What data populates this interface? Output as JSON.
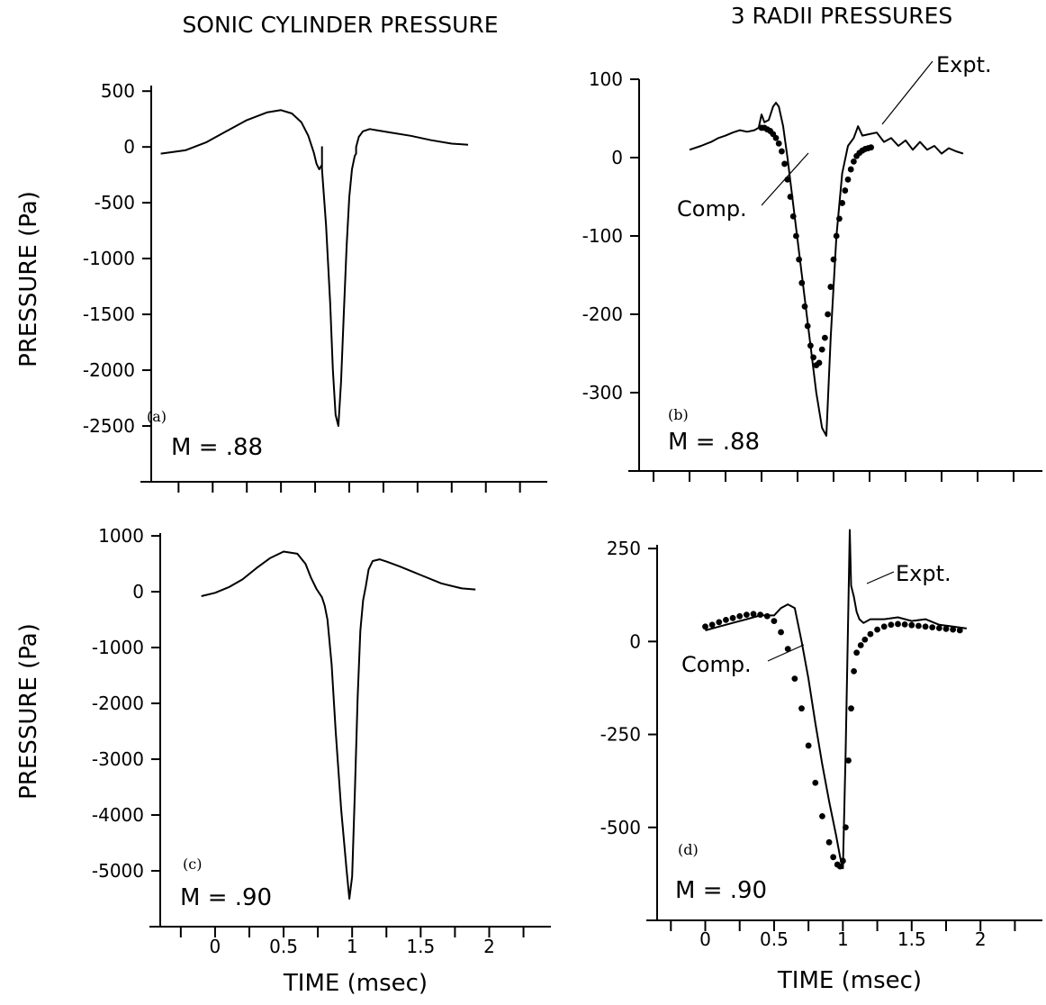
{
  "figure": {
    "col_titles": [
      "SONIC CYLINDER PRESSURE",
      "3 RADII PRESSURES"
    ]
  },
  "chart_data": [
    {
      "type": "line",
      "panel": "(a)",
      "annotation": "M = .88",
      "ylabel": "PRESSURE (Pa)",
      "xlabel": "",
      "title": "SONIC CYLINDER PRESSURE",
      "ylim": [
        -3000,
        550
      ],
      "yticks": [
        500,
        0,
        -500,
        -1000,
        -1500,
        -2000,
        -2500
      ],
      "ytick_labels": [
        "500",
        "0",
        "-500",
        "-1000",
        "-1500",
        "-2000",
        "-2500"
      ],
      "xlim": [
        -0.45,
        2.45
      ],
      "xticks": [
        -0.25,
        0,
        0.25,
        0.5,
        0.75,
        1,
        1.25,
        1.5,
        1.75,
        2,
        2.25
      ],
      "xtick_labels": [],
      "series": [
        {
          "style": "line",
          "x": [
            -0.38,
            -0.2,
            -0.05,
            0.1,
            0.25,
            0.4,
            0.5,
            0.58,
            0.65,
            0.7,
            0.74,
            0.76,
            0.78,
            0.8,
            0.8,
            0.8,
            0.83,
            0.86,
            0.88,
            0.9,
            0.92,
            0.94,
            0.96,
            0.98,
            1.0,
            1.02,
            1.04,
            1.05,
            1.05,
            1.07,
            1.1,
            1.15,
            1.2,
            1.3,
            1.45,
            1.6,
            1.75,
            1.87
          ],
          "y": [
            -60,
            -30,
            40,
            140,
            240,
            310,
            330,
            300,
            220,
            100,
            -50,
            -150,
            -200,
            -160,
            0,
            -200,
            -700,
            -1400,
            -2000,
            -2400,
            -2500,
            -2100,
            -1500,
            -900,
            -450,
            -200,
            -80,
            -60,
            0,
            90,
            140,
            160,
            150,
            130,
            100,
            60,
            30,
            20
          ]
        }
      ]
    },
    {
      "type": "line",
      "panel": "(b)",
      "annotation": "M = .88",
      "ylabel": "",
      "xlabel": "",
      "title": "3 RADII PRESSURES",
      "ylim": [
        -400,
        100
      ],
      "yticks": [
        100,
        0,
        -100,
        -200,
        -300
      ],
      "ytick_labels": [
        "100",
        "0",
        "-100",
        "-200",
        "-300"
      ],
      "xlim": [
        -0.35,
        2.45
      ],
      "xticks": [
        -0.25,
        0,
        0.25,
        0.5,
        0.75,
        1,
        1.25,
        1.5,
        1.75,
        2,
        2.25
      ],
      "xtick_labels": [],
      "series": [
        {
          "name": "Expt.",
          "style": "line",
          "x": [
            0.0,
            0.08,
            0.15,
            0.2,
            0.25,
            0.3,
            0.35,
            0.4,
            0.45,
            0.48,
            0.5,
            0.52,
            0.55,
            0.58,
            0.6,
            0.62,
            0.65,
            0.68,
            0.72,
            0.76,
            0.8,
            0.84,
            0.88,
            0.92,
            0.95,
            0.98,
            1.02,
            1.06,
            1.1,
            1.14,
            1.17,
            1.2,
            1.25,
            1.3,
            1.35,
            1.4,
            1.45,
            1.5,
            1.55,
            1.6,
            1.65,
            1.7,
            1.75,
            1.8,
            1.85,
            1.9
          ],
          "y": [
            10,
            15,
            20,
            25,
            28,
            32,
            35,
            33,
            35,
            38,
            55,
            45,
            48,
            65,
            70,
            65,
            40,
            0,
            -60,
            -120,
            -180,
            -240,
            -300,
            -345,
            -355,
            -230,
            -100,
            -20,
            15,
            25,
            40,
            28,
            30,
            32,
            20,
            25,
            15,
            22,
            10,
            20,
            10,
            15,
            5,
            12,
            8,
            5
          ]
        },
        {
          "name": "Comp.",
          "style": "dots",
          "x": [
            0.5,
            0.52,
            0.54,
            0.56,
            0.58,
            0.6,
            0.62,
            0.64,
            0.66,
            0.68,
            0.7,
            0.72,
            0.74,
            0.76,
            0.78,
            0.8,
            0.82,
            0.84,
            0.86,
            0.88,
            0.9,
            0.92,
            0.94,
            0.96,
            0.98,
            1.0,
            1.02,
            1.04,
            1.06,
            1.08,
            1.1,
            1.12,
            1.14,
            1.16,
            1.18,
            1.2,
            1.22,
            1.24,
            1.26
          ],
          "y": [
            38,
            38,
            36,
            34,
            30,
            25,
            18,
            8,
            -8,
            -28,
            -50,
            -75,
            -100,
            -130,
            -160,
            -190,
            -215,
            -240,
            -255,
            -265,
            -262,
            -245,
            -230,
            -200,
            -165,
            -130,
            -100,
            -78,
            -58,
            -42,
            -28,
            -15,
            -5,
            2,
            6,
            9,
            11,
            12,
            13
          ]
        }
      ]
    },
    {
      "type": "line",
      "panel": "(c)",
      "annotation": "M = .90",
      "ylabel": "PRESSURE (Pa)",
      "xlabel": "TIME (msec)",
      "title": "",
      "ylim": [
        -6000,
        1050
      ],
      "yticks": [
        1000,
        0,
        -1000,
        -2000,
        -3000,
        -4000,
        -5000
      ],
      "ytick_labels": [
        "1000",
        "0",
        "-1000",
        "-2000",
        "-3000",
        "-4000",
        "-5000"
      ],
      "xlim": [
        -0.4,
        2.45
      ],
      "xticks": [
        -0.25,
        0,
        0.25,
        0.5,
        0.75,
        1,
        1.25,
        1.5,
        1.75,
        2,
        2.25
      ],
      "xtick_labels": [
        "0",
        "0.5",
        "1",
        "1.5",
        "2"
      ],
      "xtick_label_values": [
        0,
        0.5,
        1,
        1.5,
        2
      ],
      "series": [
        {
          "style": "line",
          "x": [
            -0.1,
            0.0,
            0.1,
            0.2,
            0.3,
            0.4,
            0.5,
            0.6,
            0.66,
            0.7,
            0.74,
            0.78,
            0.8,
            0.82,
            0.85,
            0.88,
            0.92,
            0.96,
            0.98,
            1.0,
            1.02,
            1.04,
            1.06,
            1.08,
            1.1,
            1.12,
            1.15,
            1.2,
            1.25,
            1.35,
            1.5,
            1.65,
            1.8,
            1.9
          ],
          "y": [
            -80,
            -20,
            80,
            220,
            420,
            600,
            720,
            680,
            500,
            250,
            50,
            -100,
            -250,
            -500,
            -1300,
            -2500,
            -3900,
            -5000,
            -5500,
            -5100,
            -3600,
            -1900,
            -700,
            -150,
            100,
            400,
            550,
            580,
            540,
            450,
            300,
            150,
            60,
            40
          ]
        }
      ]
    },
    {
      "type": "line",
      "panel": "(d)",
      "annotation": "M = .90",
      "ylabel": "",
      "xlabel": "TIME (msec)",
      "title": "",
      "ylim": [
        -750,
        260
      ],
      "yticks": [
        250,
        0,
        -250,
        -500
      ],
      "ytick_labels": [
        "250",
        "0",
        "-250",
        "-500"
      ],
      "xlim": [
        -0.35,
        2.45
      ],
      "xticks": [
        -0.25,
        0,
        0.25,
        0.5,
        0.75,
        1,
        1.25,
        1.5,
        1.75,
        2,
        2.25
      ],
      "xtick_labels": [
        "0",
        "0.5",
        "1",
        "1.5",
        "2"
      ],
      "xtick_label_values": [
        0,
        0.5,
        1,
        1.5,
        2
      ],
      "series": [
        {
          "name": "Expt.",
          "style": "line",
          "x": [
            0.0,
            0.1,
            0.2,
            0.3,
            0.4,
            0.5,
            0.55,
            0.6,
            0.65,
            0.7,
            0.75,
            0.8,
            0.85,
            0.9,
            0.95,
            0.98,
            1.0,
            1.02,
            1.04,
            1.05,
            1.06,
            1.08,
            1.1,
            1.12,
            1.15,
            1.2,
            1.3,
            1.4,
            1.5,
            1.6,
            1.7,
            1.8,
            1.9
          ],
          "y": [
            30,
            40,
            50,
            60,
            70,
            70,
            90,
            100,
            90,
            0,
            -100,
            -220,
            -330,
            -430,
            -520,
            -580,
            -610,
            -300,
            100,
            300,
            150,
            120,
            80,
            60,
            50,
            60,
            60,
            65,
            55,
            60,
            45,
            40,
            35
          ]
        },
        {
          "name": "Comp.",
          "style": "dots",
          "x": [
            0.0,
            0.05,
            0.1,
            0.15,
            0.2,
            0.25,
            0.3,
            0.35,
            0.4,
            0.45,
            0.5,
            0.55,
            0.6,
            0.65,
            0.7,
            0.75,
            0.8,
            0.85,
            0.9,
            0.93,
            0.96,
            0.98,
            1.0,
            1.02,
            1.04,
            1.06,
            1.08,
            1.1,
            1.13,
            1.16,
            1.2,
            1.25,
            1.3,
            1.35,
            1.4,
            1.45,
            1.5,
            1.55,
            1.6,
            1.65,
            1.7,
            1.75,
            1.8,
            1.85
          ],
          "y": [
            40,
            45,
            52,
            58,
            63,
            68,
            72,
            74,
            72,
            68,
            55,
            25,
            -20,
            -100,
            -180,
            -280,
            -380,
            -470,
            -540,
            -580,
            -600,
            -605,
            -590,
            -500,
            -320,
            -180,
            -80,
            -30,
            -10,
            5,
            20,
            32,
            40,
            45,
            47,
            46,
            44,
            42,
            40,
            38,
            36,
            34,
            32,
            30
          ]
        }
      ]
    }
  ]
}
